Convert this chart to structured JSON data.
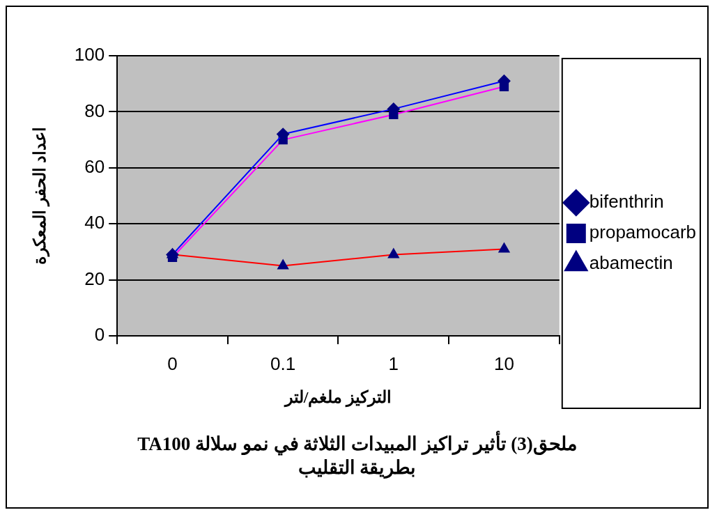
{
  "chart_data": {
    "type": "line",
    "title": "ملحق(3) تأثير تراكيز المبيدات الثلاثة في نمو سلالة TA100",
    "subtitle": "بطريقة التقليب",
    "xlabel": "التركيز ملغم/لتر",
    "ylabel": "اعداد الحفر المعكرة",
    "categories": [
      "0",
      "0.1",
      "1",
      "10"
    ],
    "series": [
      {
        "name": "bifenthrin",
        "color": "#0000ff",
        "marker": "diamond",
        "values": [
          29,
          72,
          81,
          91
        ]
      },
      {
        "name": "propamocarb",
        "color": "#ff00ff",
        "marker": "square",
        "values": [
          28,
          70,
          79,
          89
        ]
      },
      {
        "name": "abamectin",
        "color": "#ff0000",
        "marker": "triangle",
        "values": [
          29,
          25,
          29,
          31
        ]
      }
    ],
    "ylim": [
      0,
      100
    ],
    "yticks": [
      0,
      20,
      40,
      60,
      80,
      100
    ],
    "grid": "y",
    "legend": "right"
  }
}
